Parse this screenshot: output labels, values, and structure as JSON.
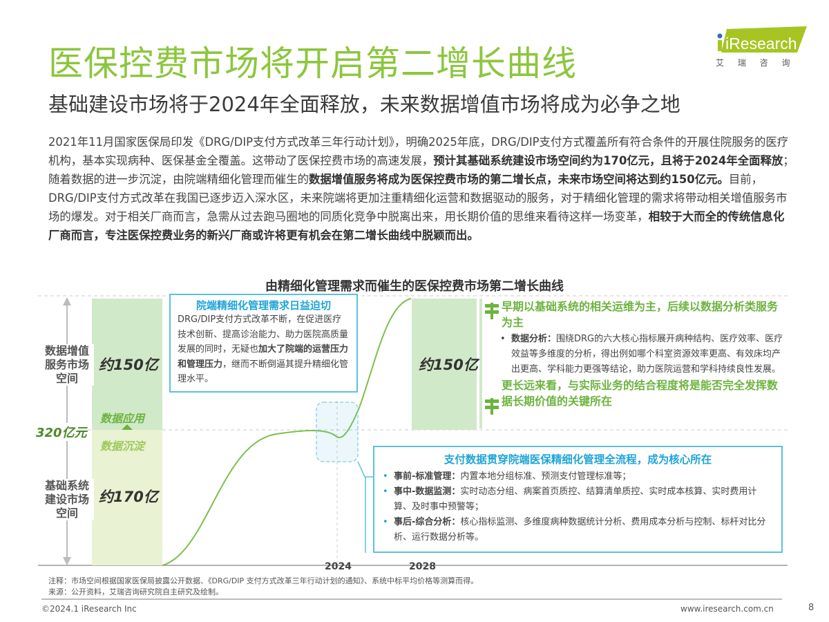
{
  "title": "医保控费市场将开启第二增长曲线",
  "subtitle": "基础建设市场将于2024年全面释放，未来数据增值市场将成为必争之地",
  "logo": {
    "brand": "iResearch",
    "cn": "艾 瑞 咨 询",
    "color": "#a6c523"
  },
  "paragraph": [
    {
      "t": "2021年11月国家医保局印发《DRG/DIP支付方式改革三年行动计划》，明确2025年底，DRG/DIP支付方式覆盖所有符合条件的开展住院服务的医疗机构，基本实现病种、医保基金全覆盖。这带动了医保控费市场的高速发展，",
      "b": false
    },
    {
      "t": "预计其基础系统建设市场空间约为170亿元，且将于2024年全面释放",
      "b": true
    },
    {
      "t": "；随着数据的进一步沉淀，由院端精细化管理而催生的",
      "b": false
    },
    {
      "t": "数据增值服务将成为医保控费市场的第二增长点，未来市场空间将达到约150亿元。",
      "b": true
    },
    {
      "t": "目前，DRG/DIP支付方式改革在我国已逐步迈入深水区，未来院端将更加注重精细化运营和数据驱动的服务，对于精细化管理的需求将带动相关增值服务市场的爆发。对于相关厂商而言，急需从过去跑马圈地的同质化竞争中脱离出来，用长期价值的思维来看待这样一场变革，",
      "b": false
    },
    {
      "t": "相较于大而全的传统信息化厂商而言，专注医保控费业务的新兴厂商或许将更有机会在第二增长曲线中脱颖而出。",
      "b": true
    }
  ],
  "diagram": {
    "title": "由精细化管理需求而催生的医保控费市场第二增长曲线",
    "axis_top_label": "数据增值\n服务市场\n空间",
    "axis_bottom_label": "基础系统\n建设市场\n空间",
    "total": "320亿元",
    "bar_top_value": "约150亿",
    "bar_bottom_value": "约170亿",
    "data_apply": "数据应用",
    "data_settle": "数据沉淀",
    "right_bar_value": "约150亿",
    "years": [
      "2024",
      "2028"
    ],
    "box1": {
      "title": "院端精细化管理需求日益迫切",
      "text": "DRG/DIP支付方式改革不断，在促进医疗技术创新、提高诊治能力、助力医院高质量发展的同时，无疑也",
      "bold": "加大了院端的运营压力和管理压力",
      "tail": "，继而不断倒逼其提升精细化管理水平。"
    },
    "right_text": {
      "h1": "早期以基础系统的相关运维为主，后续以数据分析类服务为主",
      "bullet_label": "数据分析：",
      "bullet_text": "围绕DRG的六大核心指标展开病种结构、医疗效率、医疗效益等多维度的分析，得出例如哪个科室资源效率更高、有效床均产出更高、学科能力更强等结论，助力医院运营和学科持续良性发展。",
      "h2": "更长远来看，与实际业务的结合程度将是能否完全发挥数据长期价值的关键所在"
    },
    "box2": {
      "title": "支付数据贯穿院端医保精细化管理全流程，成为核心所在",
      "items": [
        {
          "label": "事前-标准管理：",
          "text": "内置本地分组标准、预测支付管理标准等；"
        },
        {
          "label": "事中-数据监测：",
          "text": "实时动态分组、病案首页质控、结算清单质控、实时成本核算、实时费用计算、及时事中预警等；"
        },
        {
          "label": "事后-综合分析：",
          "text": "核心指标监测、多维度病种数据统计分析、费用成本分析与控制、标杆对比分析、运行数据分析等。"
        }
      ]
    }
  },
  "notes": {
    "note": "注释：市场空间根据国家医保局披露公开数据、《DRG/DIP 支付方式改革三年行动计划的通知》、系统中标平均价格等测算而得。",
    "source": "来源：公开资料，艾瑞咨询研究院自主研究及绘制。"
  },
  "footer": {
    "copyright": "©2024.1 iResearch Inc",
    "url": "www.iresearch.com.cn",
    "page": "8"
  }
}
